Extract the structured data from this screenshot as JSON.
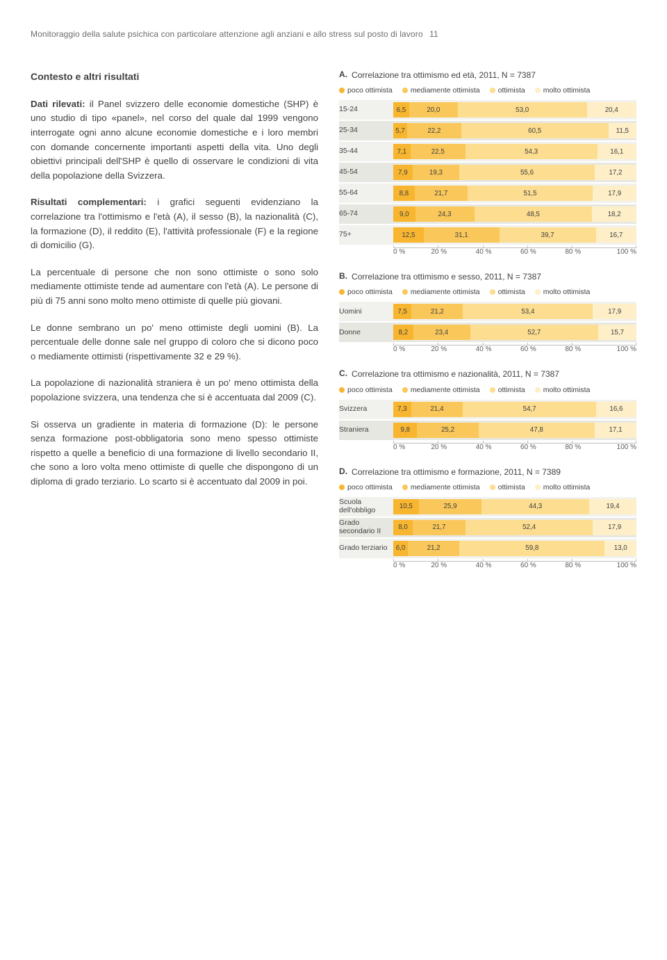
{
  "colors": {
    "s1": "#f8b630",
    "s2": "#fac85a",
    "s3": "#fddd8f",
    "s4": "#feefc8",
    "rowbg_odd": "#f1f1ee",
    "rowbg_even": "#e7e7e2"
  },
  "header": {
    "running": "Monitoraggio della salute psichica con particolare attenzione agli anziani e allo stress sul posto di lavoro",
    "page": "11"
  },
  "left": {
    "h2": "Contesto e altri risultati",
    "p1a": "Dati rilevati:",
    "p1b": " il Panel svizzero delle economie domestiche (SHP) è uno studio di tipo «panel», nel corso del quale dal 1999 vengono interrogate ogni anno alcune economie domestiche e i loro membri con domande concernente importanti aspetti della vita. Uno degli obiettivi principali dell'SHP è quello di osservare le condizioni di vita della popolazione della Svizzera.",
    "p2a": "Risultati complementari:",
    "p2b": " i grafici seguenti evidenziano la correlazione tra l'ottimismo e l'età (A), il sesso (B), la nazionalità (C), la formazione (D), il reddito (E), l'attività professionale (F) e la regione di domicilio (G).",
    "p3": "La percentuale di persone che non sono ottimiste o sono solo mediamente ottimiste tende ad aumentare con l'età (A). Le persone di più di 75 anni sono molto meno ottimiste di quelle più giovani.",
    "p4": "Le donne sembrano un po' meno ottimiste degli uomini (B). La percentuale delle donne sale nel gruppo di coloro che si dicono poco o mediamente ottimisti (rispettivamente 32 e 29 %).",
    "p5": "La popolazione di nazionalità straniera è un po' meno ottimista della popolazione svizzera, una tendenza che si è accentuata dal 2009 (C).",
    "p6": "Si osserva un gradiente in materia di formazione (D): le persone senza formazione post-obbligatoria sono meno spesso ottimiste rispetto a quelle a beneficio di una formazione di livello secondario II, che sono a loro volta meno ottimiste di quelle che dispongono di un diploma di grado terziario. Lo scarto si è accentuato dal 2009 in poi."
  },
  "legend_labels": [
    "poco ottimista",
    "mediamente ottimista",
    "ottimista",
    "molto ottimista"
  ],
  "axis_ticks": [
    "0 %",
    "20 %",
    "40 %",
    "60 %",
    "80 %",
    "100 %"
  ],
  "charts": [
    {
      "letter": "A.",
      "title": "Correlazione tra ottimismo ed età, 2011, N = 7387",
      "rows": [
        {
          "label": "15-24",
          "v": [
            6.5,
            20.0,
            53.0,
            20.4
          ],
          "t": [
            "6,5",
            "20,0",
            "53,0",
            "20,4"
          ]
        },
        {
          "label": "25-34",
          "v": [
            5.7,
            22.2,
            60.5,
            11.5
          ],
          "t": [
            "5,7",
            "22,2",
            "60,5",
            "11,5"
          ]
        },
        {
          "label": "35-44",
          "v": [
            7.1,
            22.5,
            54.3,
            16.1
          ],
          "t": [
            "7,1",
            "22,5",
            "54,3",
            "16,1"
          ]
        },
        {
          "label": "45-54",
          "v": [
            7.9,
            19.3,
            55.6,
            17.2
          ],
          "t": [
            "7,9",
            "19,3",
            "55,6",
            "17,2"
          ]
        },
        {
          "label": "55-64",
          "v": [
            8.8,
            21.7,
            51.5,
            17.9
          ],
          "t": [
            "8,8",
            "21,7",
            "51,5",
            "17,9"
          ]
        },
        {
          "label": "65-74",
          "v": [
            9.0,
            24.3,
            48.5,
            18.2
          ],
          "t": [
            "9,0",
            "24,3",
            "48,5",
            "18,2"
          ]
        },
        {
          "label": "75+",
          "v": [
            12.5,
            31.1,
            39.7,
            16.7
          ],
          "t": [
            "12,5",
            "31,1",
            "39,7",
            "16,7"
          ]
        }
      ]
    },
    {
      "letter": "B.",
      "title": "Correlazione tra ottimismo e sesso, 2011, N = 7387",
      "rows": [
        {
          "label": "Uomini",
          "v": [
            7.5,
            21.2,
            53.4,
            17.9
          ],
          "t": [
            "7,5",
            "21,2",
            "53,4",
            "17,9"
          ]
        },
        {
          "label": "Donne",
          "v": [
            8.2,
            23.4,
            52.7,
            15.7
          ],
          "t": [
            "8,2",
            "23,4",
            "52,7",
            "15,7"
          ]
        }
      ]
    },
    {
      "letter": "C.",
      "title": "Correlazione tra ottimismo e nazionalità, 2011, N = 7387",
      "rows": [
        {
          "label": "Svizzera",
          "v": [
            7.3,
            21.4,
            54.7,
            16.6
          ],
          "t": [
            "7,3",
            "21,4",
            "54,7",
            "16,6"
          ]
        },
        {
          "label": "Straniera",
          "v": [
            9.8,
            25.2,
            47.8,
            17.1
          ],
          "t": [
            "9,8",
            "25,2",
            "47,8",
            "17,1"
          ]
        }
      ]
    },
    {
      "letter": "D.",
      "title": "Correlazione tra ottimismo e formazione, 2011, N = 7389",
      "rows": [
        {
          "label": "Scuola dell'obbligo",
          "v": [
            10.5,
            25.9,
            44.3,
            19.4
          ],
          "t": [
            "10,5",
            "25,9",
            "44,3",
            "19,4"
          ]
        },
        {
          "label": "Grado secondario II",
          "v": [
            8.0,
            21.7,
            52.4,
            17.9
          ],
          "t": [
            "8,0",
            "21,7",
            "52,4",
            "17,9"
          ]
        },
        {
          "label": "Grado terziario",
          "v": [
            6.0,
            21.2,
            59.8,
            13.0
          ],
          "t": [
            "6,0",
            "21,2",
            "59,8",
            "13,0"
          ]
        }
      ]
    }
  ]
}
